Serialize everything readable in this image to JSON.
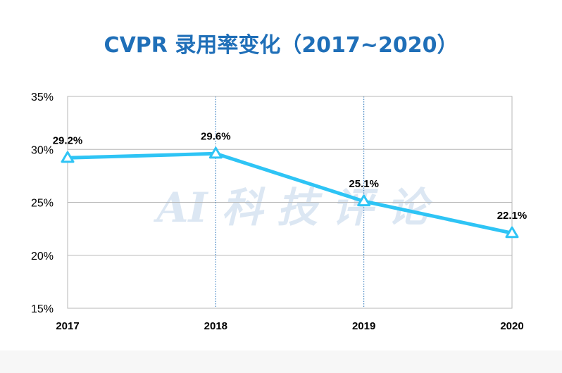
{
  "colors": {
    "title": "#1f6fb8",
    "series": "#2ec4f5",
    "grid": "#b7b7b7",
    "vgrid": "#1f6fb8",
    "watermark": "#dce7f3",
    "bottom_band": "#f7f7f7"
  },
  "watermark": "AI 科 技 评 论",
  "chart_data": {
    "type": "line",
    "title": "CVPR 录用率变化（2017~2020）",
    "xlabel": "",
    "ylabel": "",
    "categories": [
      "2017",
      "2018",
      "2019",
      "2020"
    ],
    "series": [
      {
        "values": [
          29.2,
          29.6,
          25.1,
          22.1
        ],
        "labels": [
          "29.2%",
          "29.6%",
          "25.1%",
          "22.1%"
        ]
      }
    ],
    "ylim": [
      15,
      35
    ],
    "yticks": [
      "15%",
      "20%",
      "25%",
      "30%",
      "35%"
    ],
    "grid": true,
    "marker": "triangle"
  }
}
